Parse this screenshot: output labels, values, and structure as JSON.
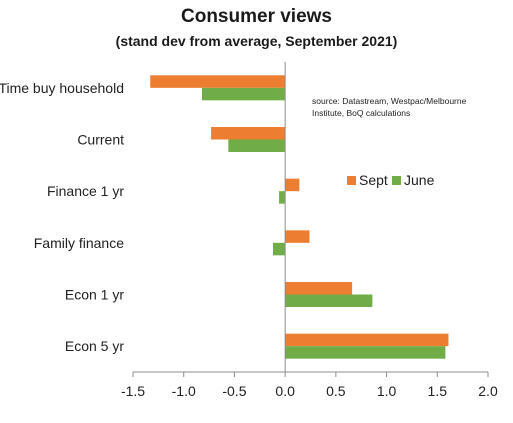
{
  "chart_data": {
    "type": "bar",
    "orientation": "horizontal",
    "title": "Consumer views",
    "subtitle": "(stand  dev from average, September 2021)",
    "categories": [
      "Time buy household",
      "Current",
      "Finance 1 yr",
      "Family finance",
      "Econ 1 yr",
      "Econ 5 yr"
    ],
    "series": [
      {
        "name": "Sept",
        "color": "#ED7D31",
        "values": [
          -1.33,
          -0.73,
          0.14,
          0.24,
          0.66,
          1.61
        ]
      },
      {
        "name": "June",
        "color": "#70AD47",
        "values": [
          -0.82,
          -0.56,
          -0.06,
          -0.12,
          0.86,
          1.58
        ]
      }
    ],
    "xlim": [
      -1.5,
      2.0
    ],
    "xticks": [
      "-1.5",
      "-1.0",
      "-0.5",
      "0.0",
      "0.5",
      "1.0",
      "1.5",
      "2.0"
    ],
    "xtick_values": [
      -1.5,
      -1.0,
      -0.5,
      0.0,
      0.5,
      1.0,
      1.5,
      2.0
    ],
    "grid": false,
    "legend_position": "right",
    "annotation": "source:  Datastream, Westpac/Melbourne Institute, BoQ calculations"
  }
}
